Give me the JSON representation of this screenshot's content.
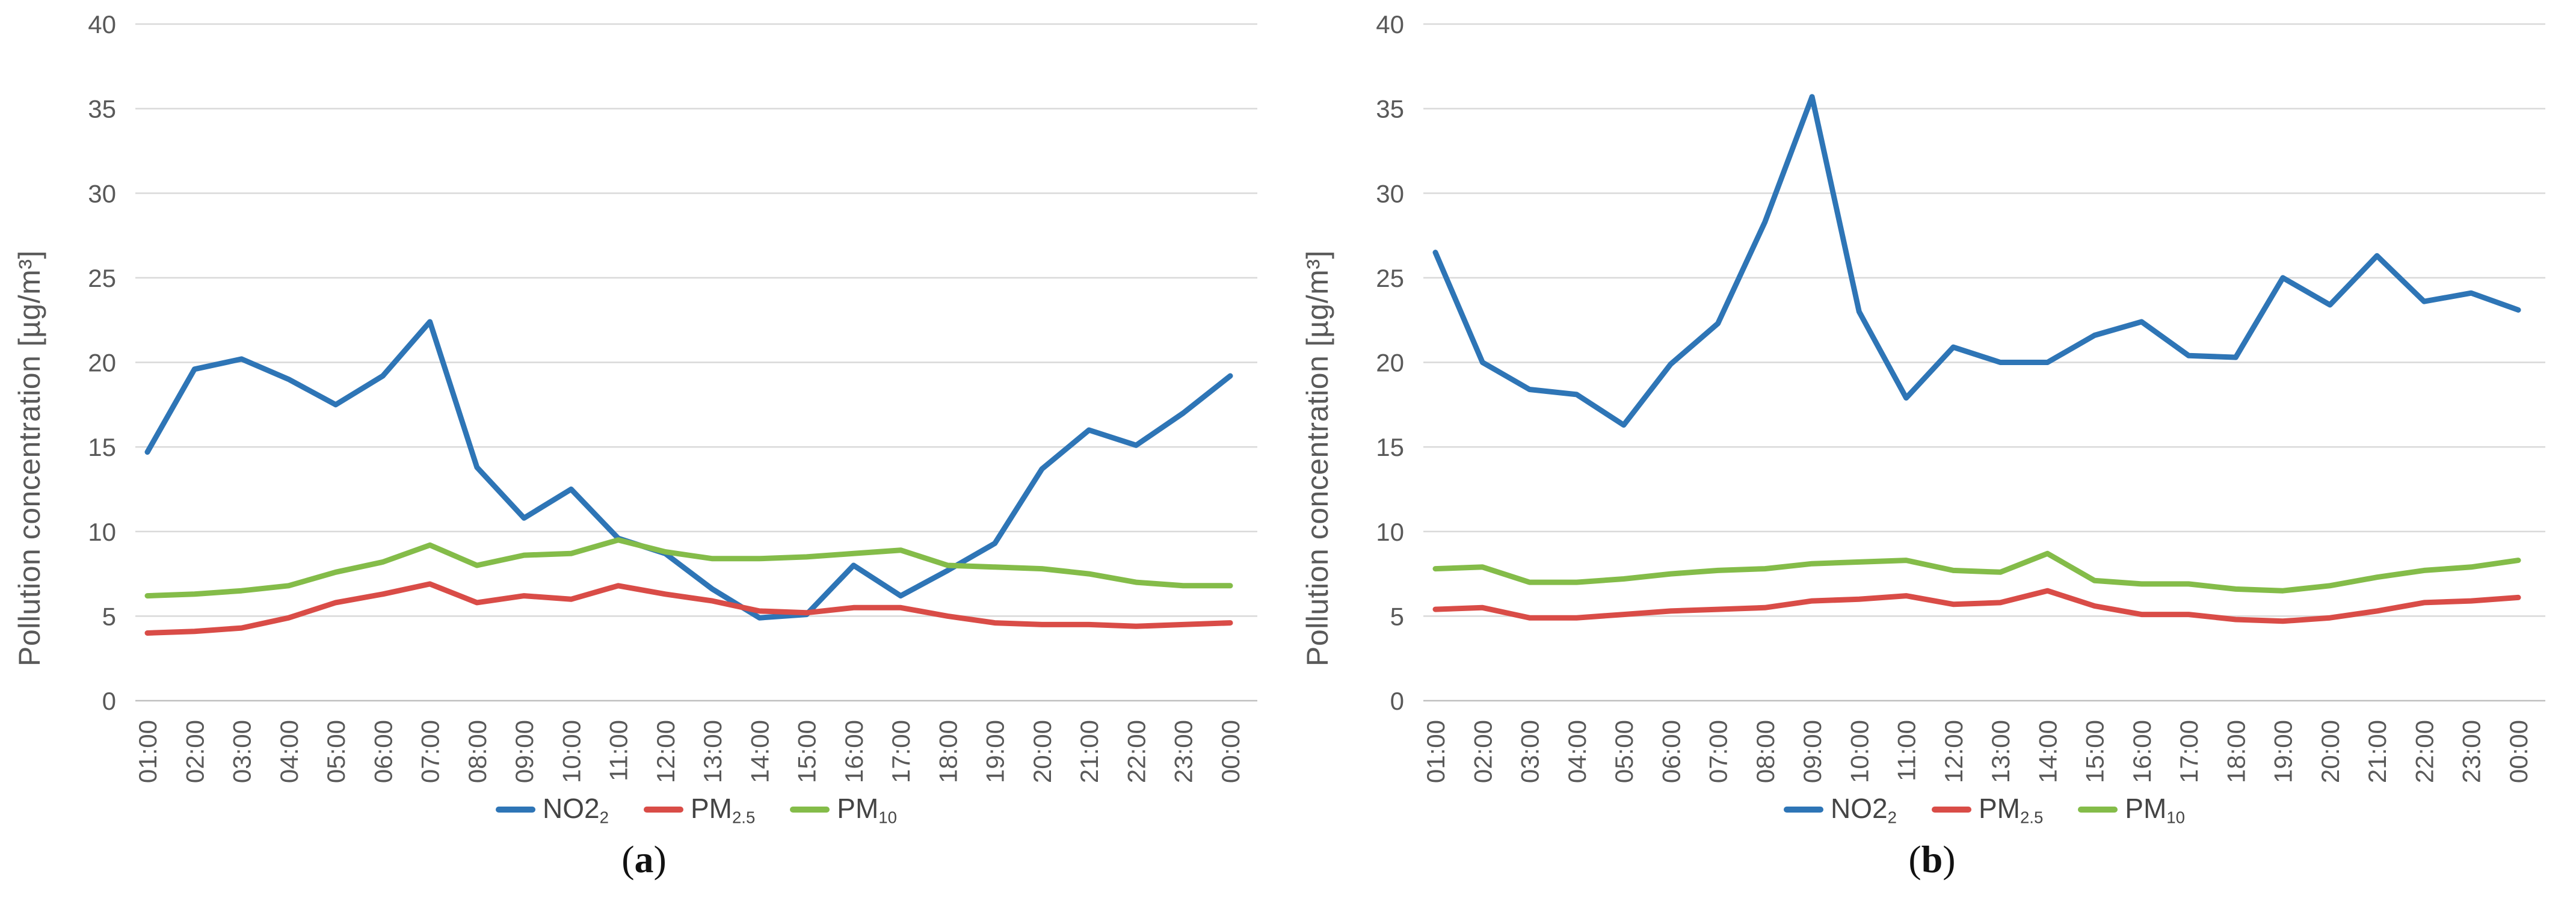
{
  "figure": {
    "y_axis_title": "Pollution concentration [µg/m³]",
    "colors": {
      "no2": "#2E75B6",
      "pm25": "#D94C47",
      "pm10": "#84BC49",
      "grid": "#D9D9D9",
      "zero_axis": "#BFBFBF",
      "tick_text": "#595959"
    },
    "legend": [
      {
        "key": "no2",
        "base": "NO2",
        "sub": "2"
      },
      {
        "key": "pm25",
        "base": "PM",
        "sub": "2.5"
      },
      {
        "key": "pm10",
        "base": "PM",
        "sub": "10"
      }
    ]
  },
  "chart_data": [
    {
      "type": "line",
      "caption_letter": "a",
      "ylabel": "Pollution concentration [µg/m³]",
      "xlabel": "",
      "ylim": [
        0,
        40
      ],
      "yticks": [
        0,
        5,
        10,
        15,
        20,
        25,
        30,
        35,
        40
      ],
      "grid": "horizontal",
      "legend_position": "bottom",
      "categories": [
        "01:00",
        "02:00",
        "03:00",
        "04:00",
        "05:00",
        "06:00",
        "07:00",
        "08:00",
        "09:00",
        "10:00",
        "11:00",
        "12:00",
        "13:00",
        "14:00",
        "15:00",
        "16:00",
        "17:00",
        "18:00",
        "19:00",
        "20:00",
        "21:00",
        "22:00",
        "23:00",
        "00:00"
      ],
      "series": [
        {
          "name": "NO2",
          "color_key": "no2",
          "values": [
            14.7,
            19.6,
            20.2,
            19.0,
            17.5,
            19.2,
            22.4,
            13.8,
            10.8,
            12.5,
            9.6,
            8.7,
            6.6,
            4.9,
            5.1,
            8.0,
            6.2,
            7.7,
            9.3,
            13.7,
            16.0,
            15.1,
            17.0,
            19.2
          ]
        },
        {
          "name": "PM2.5",
          "color_key": "pm25",
          "values": [
            4.0,
            4.1,
            4.3,
            4.9,
            5.8,
            6.3,
            6.9,
            5.8,
            6.2,
            6.0,
            6.8,
            6.3,
            5.9,
            5.3,
            5.2,
            5.5,
            5.5,
            5.0,
            4.6,
            4.5,
            4.5,
            4.4,
            4.5,
            4.6
          ]
        },
        {
          "name": "PM10",
          "color_key": "pm10",
          "values": [
            6.2,
            6.3,
            6.5,
            6.8,
            7.6,
            8.2,
            9.2,
            8.0,
            8.6,
            8.7,
            9.5,
            8.8,
            8.4,
            8.4,
            8.5,
            8.7,
            8.9,
            8.0,
            7.9,
            7.8,
            7.5,
            7.0,
            6.8,
            6.8
          ]
        }
      ]
    },
    {
      "type": "line",
      "caption_letter": "b",
      "ylabel": "Pollution concentration [µg/m³]",
      "xlabel": "",
      "ylim": [
        0,
        40
      ],
      "yticks": [
        0,
        5,
        10,
        15,
        20,
        25,
        30,
        35,
        40
      ],
      "grid": "horizontal",
      "legend_position": "bottom",
      "categories": [
        "01:00",
        "02:00",
        "03:00",
        "04:00",
        "05:00",
        "06:00",
        "07:00",
        "08:00",
        "09:00",
        "10:00",
        "11:00",
        "12:00",
        "13:00",
        "14:00",
        "15:00",
        "16:00",
        "17:00",
        "18:00",
        "19:00",
        "20:00",
        "21:00",
        "22:00",
        "23:00",
        "00:00"
      ],
      "series": [
        {
          "name": "NO2",
          "color_key": "no2",
          "values": [
            26.5,
            20.0,
            18.4,
            18.1,
            16.3,
            19.9,
            22.3,
            28.3,
            35.7,
            23.0,
            17.9,
            20.9,
            20.0,
            20.0,
            21.6,
            22.4,
            20.4,
            20.3,
            25.0,
            23.4,
            26.3,
            23.6,
            24.1,
            23.1
          ]
        },
        {
          "name": "PM2.5",
          "color_key": "pm25",
          "values": [
            5.4,
            5.5,
            4.9,
            4.9,
            5.1,
            5.3,
            5.4,
            5.5,
            5.9,
            6.0,
            6.2,
            5.7,
            5.8,
            6.5,
            5.6,
            5.1,
            5.1,
            4.8,
            4.7,
            4.9,
            5.3,
            5.8,
            5.9,
            6.1
          ]
        },
        {
          "name": "PM10",
          "color_key": "pm10",
          "values": [
            7.8,
            7.9,
            7.0,
            7.0,
            7.2,
            7.5,
            7.7,
            7.8,
            8.1,
            8.2,
            8.3,
            7.7,
            7.6,
            8.7,
            7.1,
            6.9,
            6.9,
            6.6,
            6.5,
            6.8,
            7.3,
            7.7,
            7.9,
            8.3
          ]
        }
      ]
    }
  ]
}
